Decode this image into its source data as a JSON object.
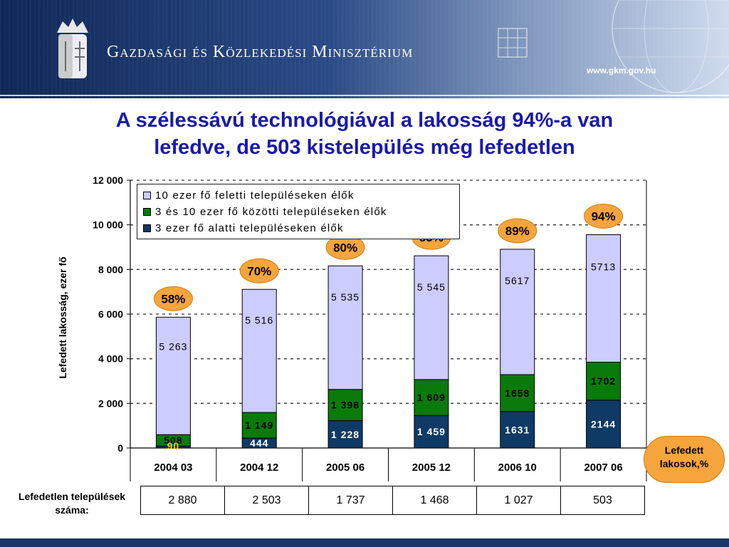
{
  "header": {
    "ministry": "Gazdasági és Közlekedési Minisztérium",
    "website": "www.gkm.gov.hu"
  },
  "title_line1": "A szélessávú technológiával a lakosság 94%-a van",
  "title_line2": "lefedve, de 503 kistelepülés még lefedetlen",
  "colors": {
    "large": "#ccccff",
    "medium": "#0a7a0a",
    "small": "#0f3a66",
    "badge": "#f6a53c",
    "title": "#1a1aaa"
  },
  "side_label": {
    "line1": "Lefedett",
    "line2": "lakosok,%"
  },
  "uncovered": {
    "label_line1": "Lefedetlen települések",
    "label_line2": "száma:",
    "values": [
      "2 880",
      "2 503",
      "1 737",
      "1 468",
      "1 027",
      "503"
    ]
  },
  "chart_data": {
    "type": "bar",
    "stacked": true,
    "ylabel": "Lefedett lakosság, ezer fő",
    "ylim": [
      0,
      12000
    ],
    "yticks": [
      0,
      2000,
      4000,
      6000,
      8000,
      10000,
      12000
    ],
    "ytick_labels": [
      "0",
      "2 000",
      "4 000",
      "6 000",
      "8 000",
      "10 000",
      "12 000"
    ],
    "grid": true,
    "legend_position": "top-left",
    "categories": [
      "2004 03",
      "2004 12",
      "2005 06",
      "2005 12",
      "2006 10",
      "2007 06"
    ],
    "series": [
      {
        "name": "3 ezer fő alatti településeken élők",
        "values": [
          90,
          444,
          1228,
          1459,
          1631,
          2144
        ],
        "labels": [
          "90",
          "444",
          "1 228",
          "1 459",
          "1631",
          "2144"
        ]
      },
      {
        "name": "3 és 10 ezer fő közötti településeken élők",
        "values": [
          508,
          1149,
          1398,
          1609,
          1658,
          1702
        ],
        "labels": [
          "508",
          "1 149",
          "1 398",
          "1 609",
          "1658",
          "1702"
        ]
      },
      {
        "name": "10 ezer fő feletti településeken élők",
        "values": [
          5263,
          5516,
          5535,
          5545,
          5617,
          5713
        ],
        "labels": [
          "5 263",
          "5 516",
          "5 535",
          "5 545",
          "5617",
          "5713"
        ]
      }
    ],
    "coverage_percent": [
      "58%",
      "70%",
      "80%",
      "85%",
      "89%",
      "94%"
    ]
  }
}
